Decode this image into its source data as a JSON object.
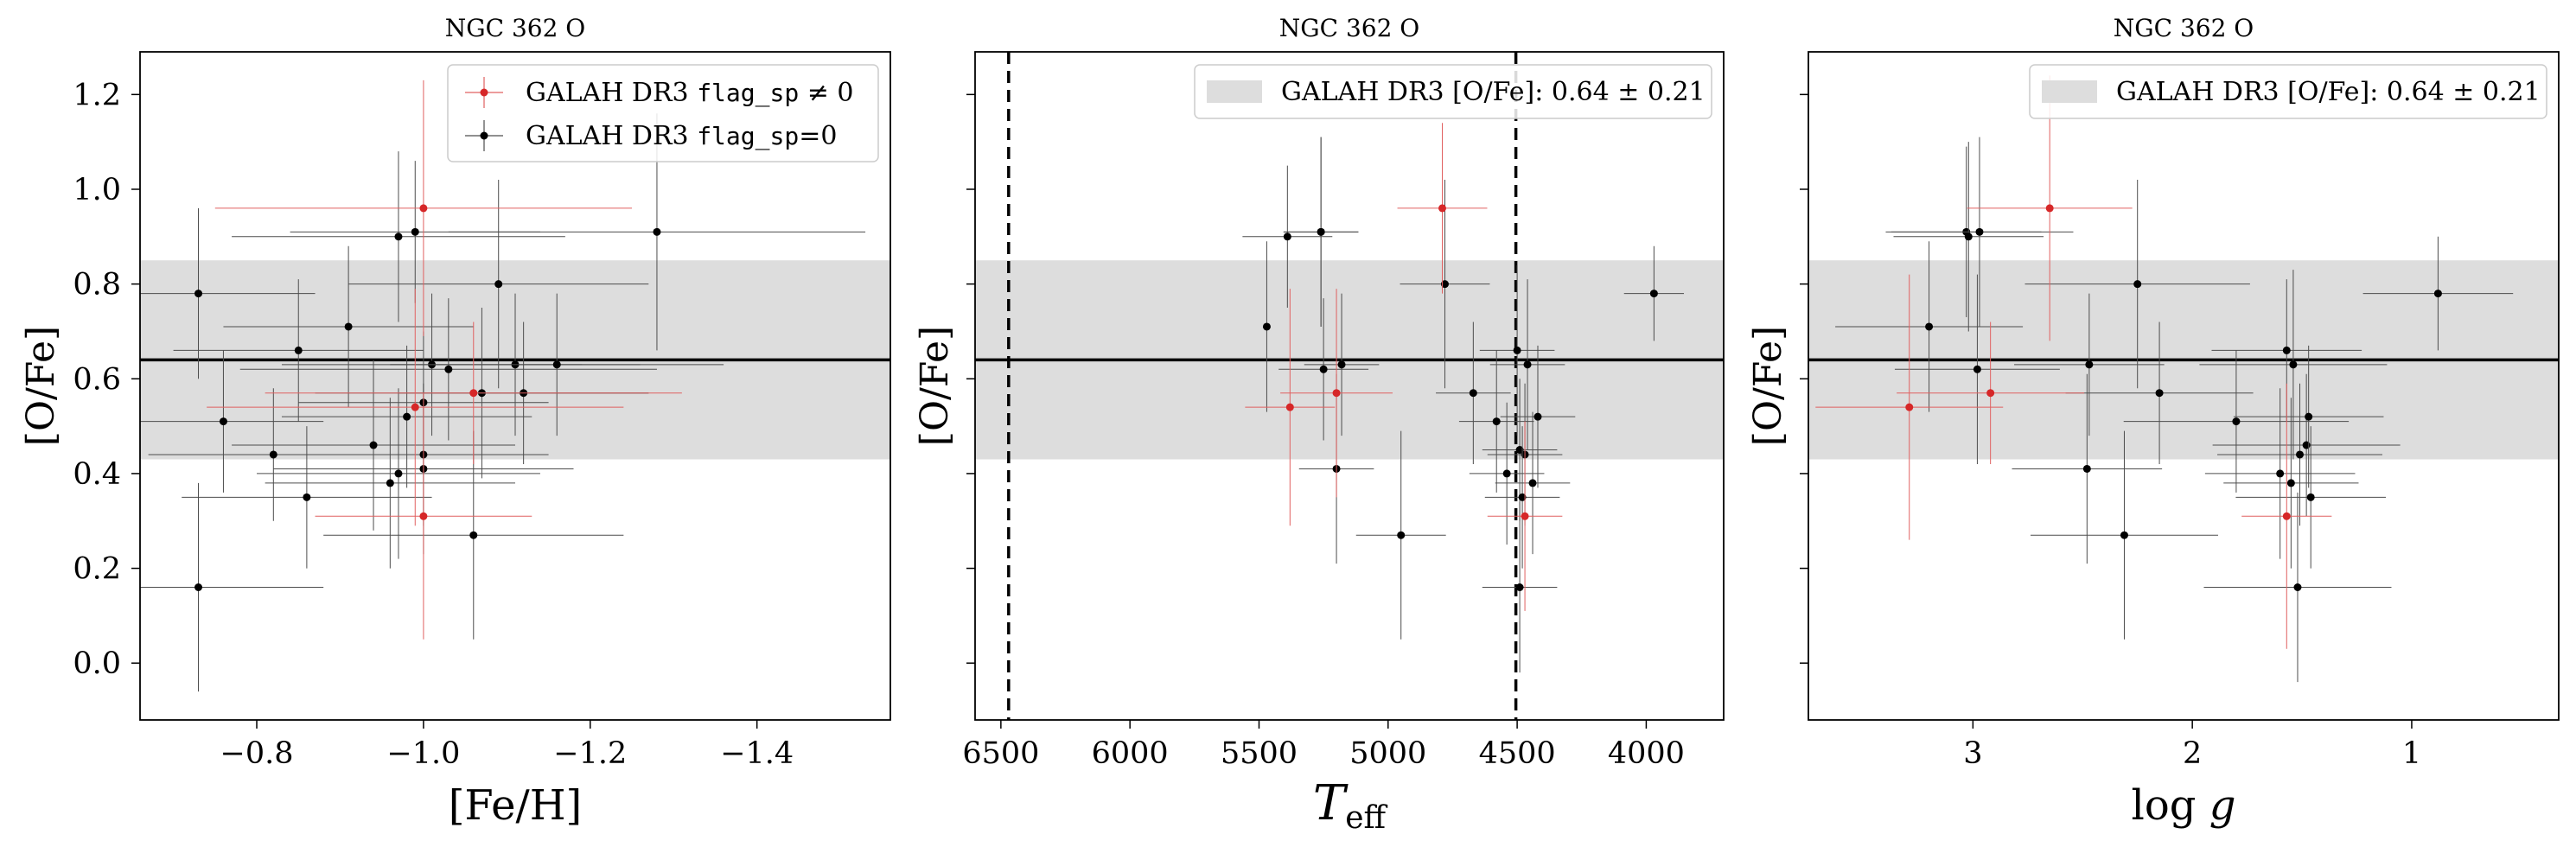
{
  "chart_data": [
    {
      "type": "scatter",
      "title": "NGC 362 O",
      "xlabel": "[Fe/H]",
      "ylabel": "[O/Fe]",
      "xlim": [
        -0.66,
        -1.56
      ],
      "ylim": [
        -0.12,
        1.29
      ],
      "xticks": [
        {
          "v": -0.8,
          "label": "−0.8"
        },
        {
          "v": -1.0,
          "label": "−1.0"
        },
        {
          "v": -1.2,
          "label": "−1.2"
        },
        {
          "v": -1.4,
          "label": "−1.4"
        }
      ],
      "yticks": [
        {
          "v": 0.0,
          "label": "0.0"
        },
        {
          "v": 0.2,
          "label": "0.2"
        },
        {
          "v": 0.4,
          "label": "0.4"
        },
        {
          "v": 0.6,
          "label": "0.6"
        },
        {
          "v": 0.8,
          "label": "0.8"
        },
        {
          "v": 1.0,
          "label": "1.0"
        },
        {
          "v": 1.2,
          "label": "1.2"
        }
      ],
      "show_yticklabels": true,
      "mean_line": 0.64,
      "band": [
        0.43,
        0.85
      ],
      "vlines": [],
      "legend": {
        "position": "top-right",
        "entries": [
          {
            "kind": "red-errorbar",
            "text": "GALAH DR3 ",
            "code": "flag_sp",
            "suffix": " ≠ 0"
          },
          {
            "kind": "black-errorbar",
            "text": "GALAH DR3 ",
            "code": "flag_sp",
            "suffix": "=0"
          }
        ]
      },
      "series": [
        {
          "color": "#000000",
          "x": [
            -0.73,
            -0.85,
            -0.91,
            -0.97,
            -0.99,
            -1.01,
            -1.03,
            -1.09,
            -1.11,
            -1.07,
            -0.76,
            -0.82,
            -0.94,
            -0.97,
            -1.12,
            -1.16,
            -1.0,
            -0.73,
            -0.86,
            -0.96,
            -0.98,
            -1.0,
            -1.06,
            -1.0,
            -1.28
          ],
          "y": [
            0.78,
            0.66,
            0.71,
            0.9,
            0.91,
            0.63,
            0.62,
            0.8,
            0.63,
            0.57,
            0.51,
            0.44,
            0.46,
            0.4,
            0.57,
            0.63,
            0.41,
            0.16,
            0.35,
            0.38,
            0.52,
            0.55,
            0.27,
            0.44,
            0.91
          ],
          "xerr": [
            0.14,
            0.15,
            0.15,
            0.2,
            0.15,
            0.18,
            0.25,
            0.18,
            0.15,
            0.2,
            0.12,
            0.15,
            0.17,
            0.17,
            0.15,
            0.2,
            0.18,
            0.15,
            0.15,
            0.15,
            0.15,
            0.15,
            0.18,
            0.15,
            0.25
          ],
          "yerr": [
            0.18,
            0.15,
            0.17,
            0.18,
            0.15,
            0.15,
            0.15,
            0.22,
            0.15,
            0.18,
            0.15,
            0.14,
            0.18,
            0.18,
            0.15,
            0.15,
            0.18,
            0.22,
            0.15,
            0.18,
            0.15,
            0.15,
            0.22,
            0.15,
            0.25
          ]
        },
        {
          "color": "#d62728",
          "x": [
            -1.0,
            -1.06,
            -0.99,
            -1.0
          ],
          "y": [
            0.96,
            0.57,
            0.54,
            0.31
          ],
          "xerr": [
            0.25,
            0.25,
            0.25,
            0.13
          ],
          "yerr": [
            0.27,
            0.15,
            0.25,
            0.26
          ]
        }
      ]
    },
    {
      "type": "scatter",
      "title": "NGC 362 O",
      "xlabel": "T_eff",
      "ylabel": "[O/Fe]",
      "xlim": [
        6600,
        3700
      ],
      "ylim": [
        -0.12,
        1.29
      ],
      "xticks": [
        {
          "v": 6500,
          "label": "6500"
        },
        {
          "v": 6000,
          "label": "6000"
        },
        {
          "v": 5500,
          "label": "5500"
        },
        {
          "v": 5000,
          "label": "5000"
        },
        {
          "v": 4500,
          "label": "4500"
        },
        {
          "v": 4000,
          "label": "4000"
        }
      ],
      "yticks": [
        {
          "v": 0.0,
          "label": ""
        },
        {
          "v": 0.2,
          "label": ""
        },
        {
          "v": 0.4,
          "label": ""
        },
        {
          "v": 0.6,
          "label": ""
        },
        {
          "v": 0.8,
          "label": ""
        },
        {
          "v": 1.0,
          "label": ""
        },
        {
          "v": 1.2,
          "label": ""
        }
      ],
      "show_yticklabels": false,
      "mean_line": 0.64,
      "band": [
        0.43,
        0.85
      ],
      "vlines": [
        6470,
        4505
      ],
      "legend": {
        "position": "top-right",
        "entries": [
          {
            "kind": "band",
            "text": "GALAH DR3 [O/Fe]: 0.64 ± 0.21"
          }
        ]
      },
      "series": [
        {
          "color": "#000000",
          "x": [
            5470,
            5390,
            5260,
            5260,
            5250,
            5180,
            5200,
            4780,
            4670,
            4580,
            4540,
            4500,
            4490,
            4470,
            4480,
            4460,
            4440,
            4420,
            4950,
            4490,
            3970
          ],
          "y": [
            0.71,
            0.9,
            0.91,
            0.91,
            0.62,
            0.63,
            0.41,
            0.8,
            0.57,
            0.51,
            0.4,
            0.66,
            0.45,
            0.44,
            0.35,
            0.63,
            0.38,
            0.52,
            0.27,
            0.16,
            0.78
          ],
          "xerr": [
            0.0,
            0.12,
            0.1,
            0.1,
            0.12,
            0.1,
            0.1,
            0.12,
            0.1,
            0.1,
            0.1,
            0.1,
            0.1,
            0.1,
            0.1,
            0.1,
            0.1,
            0.1,
            0.12,
            0.1,
            0.08
          ],
          "yerr": [
            0.18,
            0.15,
            0.2,
            0.2,
            0.15,
            0.15,
            0.2,
            0.22,
            0.15,
            0.15,
            0.15,
            0.18,
            0.15,
            0.15,
            0.15,
            0.18,
            0.15,
            0.15,
            0.22,
            0.18,
            0.1
          ]
        },
        {
          "color": "#d62728",
          "x": [
            4790,
            5200,
            5380,
            4470
          ],
          "y": [
            0.96,
            0.57,
            0.54,
            0.31
          ],
          "xerr": [
            0.12,
            0.15,
            0.12,
            0.1
          ],
          "yerr": [
            0.18,
            0.22,
            0.25,
            0.2
          ]
        }
      ]
    },
    {
      "type": "scatter",
      "title": "NGC 362 O",
      "xlabel": "log g",
      "ylabel": "[O/Fe]",
      "xlim": [
        3.75,
        0.33
      ],
      "ylim": [
        -0.12,
        1.29
      ],
      "xticks": [
        {
          "v": 3,
          "label": "3"
        },
        {
          "v": 2,
          "label": "2"
        },
        {
          "v": 1,
          "label": "1"
        }
      ],
      "yticks": [
        {
          "v": 0.0,
          "label": ""
        },
        {
          "v": 0.2,
          "label": ""
        },
        {
          "v": 0.4,
          "label": ""
        },
        {
          "v": 0.6,
          "label": ""
        },
        {
          "v": 0.8,
          "label": ""
        },
        {
          "v": 1.0,
          "label": ""
        },
        {
          "v": 1.2,
          "label": ""
        }
      ],
      "show_yticklabels": false,
      "mean_line": 0.64,
      "band": [
        0.43,
        0.85
      ],
      "vlines": [],
      "legend": {
        "position": "top-right",
        "entries": [
          {
            "kind": "band",
            "text": "GALAH DR3 [O/Fe]: 0.64 ± 0.21"
          }
        ]
      },
      "series": [
        {
          "color": "#000000",
          "x": [
            3.2,
            3.03,
            3.02,
            2.97,
            2.98,
            2.47,
            2.25,
            2.15,
            1.8,
            1.57,
            1.54,
            1.51,
            1.48,
            1.47,
            1.46,
            1.55,
            1.6,
            2.48,
            2.31,
            1.52,
            0.88
          ],
          "y": [
            0.71,
            0.91,
            0.9,
            0.91,
            0.62,
            0.63,
            0.8,
            0.57,
            0.51,
            0.66,
            0.63,
            0.44,
            0.46,
            0.52,
            0.35,
            0.38,
            0.4,
            0.41,
            0.27,
            0.16,
            0.78
          ],
          "xerr": [
            0.25,
            0.2,
            0.2,
            0.25,
            0.22,
            0.2,
            0.3,
            0.25,
            0.3,
            0.2,
            0.25,
            0.22,
            0.25,
            0.2,
            0.2,
            0.18,
            0.2,
            0.2,
            0.25,
            0.25,
            0.2
          ],
          "yerr": [
            0.18,
            0.18,
            0.2,
            0.2,
            0.2,
            0.15,
            0.22,
            0.15,
            0.15,
            0.15,
            0.2,
            0.15,
            0.15,
            0.15,
            0.15,
            0.18,
            0.18,
            0.2,
            0.22,
            0.2,
            0.12
          ]
        },
        {
          "color": "#d62728",
          "x": [
            2.65,
            2.92,
            3.29,
            1.57
          ],
          "y": [
            0.96,
            0.57,
            0.54,
            0.31
          ],
          "xerr": [
            0.22,
            0.25,
            0.25,
            0.12
          ],
          "yerr": [
            0.28,
            0.15,
            0.28,
            0.28
          ]
        }
      ]
    }
  ]
}
